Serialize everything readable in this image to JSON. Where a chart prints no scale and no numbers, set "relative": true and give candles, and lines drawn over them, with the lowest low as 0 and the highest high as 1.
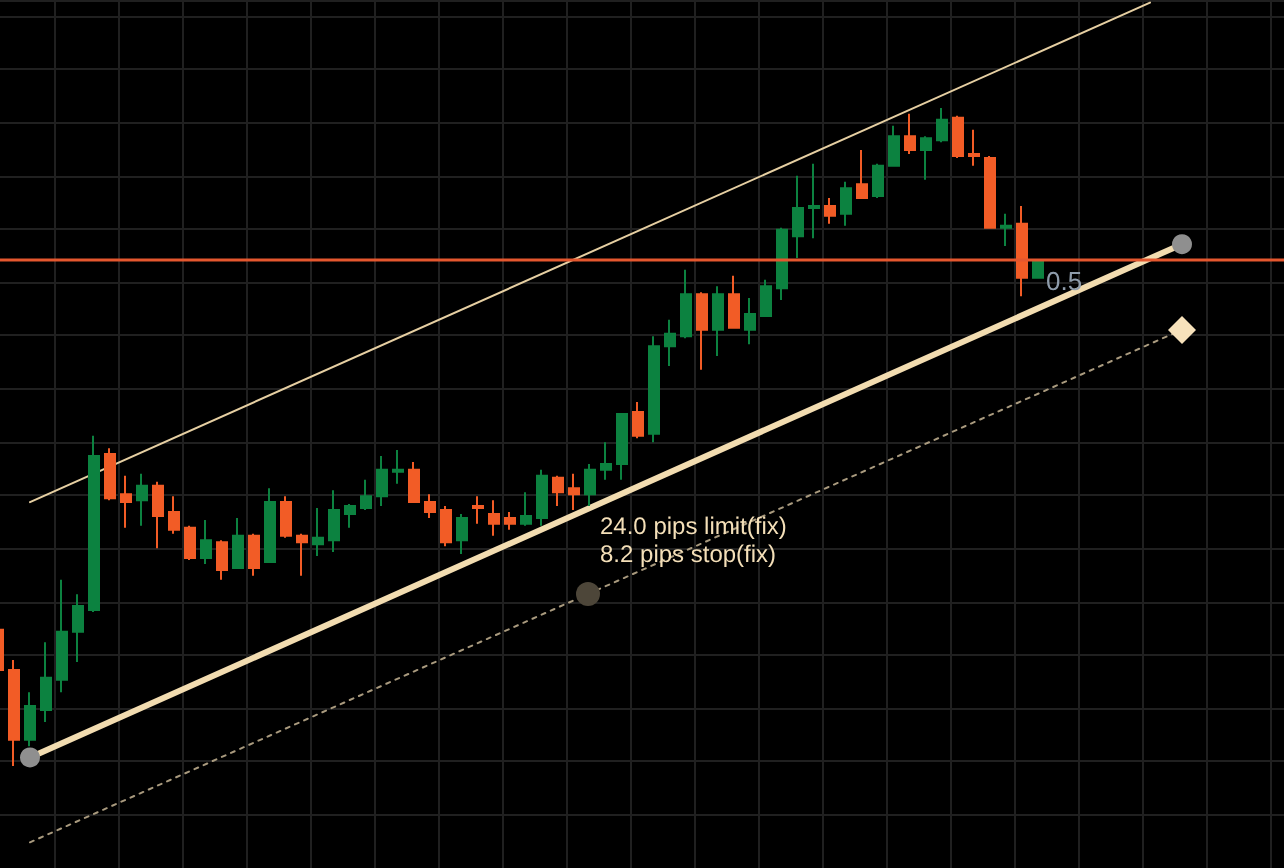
{
  "chart_data": {
    "type": "candlestick",
    "relative": true,
    "grid": true,
    "categories": [
      null,
      null,
      null,
      null,
      null,
      null,
      null,
      null,
      null,
      null,
      null,
      null,
      null,
      null,
      null,
      null,
      null,
      null,
      null,
      null,
      null,
      null,
      null,
      null,
      null,
      null,
      null,
      null,
      null,
      null,
      null,
      null,
      null,
      null,
      null,
      null,
      null,
      null,
      null,
      null,
      null,
      null,
      null,
      null,
      null,
      null,
      null,
      null,
      null,
      null,
      null,
      null,
      null,
      null,
      null,
      null,
      null,
      null,
      null,
      null,
      null,
      null,
      null,
      null,
      null,
      null,
      null,
      null,
      null,
      null,
      null,
      null,
      null,
      null,
      null,
      null,
      null,
      null,
      null,
      null,
      null
    ],
    "ohlc": [
      [
        0.207,
        0.207,
        0.146,
        0.146
      ],
      [
        0.146,
        0.161,
        0,
        0.04
      ],
      [
        0.04,
        0.112,
        0.03,
        0.091
      ],
      [
        0.085,
        0.188,
        0.067,
        0.134
      ],
      [
        0.131,
        0.283,
        0.112,
        0.204
      ],
      [
        0.204,
        0.261,
        0.158,
        0.243
      ],
      [
        0.237,
        0.502,
        0.234,
        0.471
      ],
      [
        0.474,
        0.483,
        0.404,
        0.407
      ],
      [
        0.413,
        0.441,
        0.362,
        0.401
      ],
      [
        0.404,
        0.444,
        0.365,
        0.426
      ],
      [
        0.426,
        0.432,
        0.331,
        0.38
      ],
      [
        0.386,
        0.41,
        0.353,
        0.359
      ],
      [
        0.362,
        0.365,
        0.313,
        0.316
      ],
      [
        0.316,
        0.374,
        0.307,
        0.343
      ],
      [
        0.34,
        0.343,
        0.283,
        0.298
      ],
      [
        0.301,
        0.377,
        0.301,
        0.35
      ],
      [
        0.35,
        0.353,
        0.289,
        0.301
      ],
      [
        0.31,
        0.422,
        0.31,
        0.401
      ],
      [
        0.401,
        0.41,
        0.347,
        0.35
      ],
      [
        0.35,
        0.353,
        0.289,
        0.34
      ],
      [
        0.337,
        0.392,
        0.319,
        0.347
      ],
      [
        0.343,
        0.419,
        0.325,
        0.389
      ],
      [
        0.383,
        0.398,
        0.362,
        0.395
      ],
      [
        0.392,
        0.435,
        0.389,
        0.41
      ],
      [
        0.41,
        0.471,
        0.395,
        0.45
      ],
      [
        0.447,
        0.48,
        0.429,
        0.45
      ],
      [
        0.45,
        0.462,
        0.401,
        0.401
      ],
      [
        0.401,
        0.413,
        0.377,
        0.386
      ],
      [
        0.389,
        0.395,
        0.334,
        0.34
      ],
      [
        0.343,
        0.383,
        0.322,
        0.377
      ],
      [
        0.395,
        0.41,
        0.368,
        0.392
      ],
      [
        0.383,
        0.404,
        0.35,
        0.368
      ],
      [
        0.377,
        0.386,
        0.359,
        0.368
      ],
      [
        0.368,
        0.416,
        0.365,
        0.38
      ],
      [
        0.377,
        0.45,
        0.365,
        0.441
      ],
      [
        0.438,
        0.441,
        0.395,
        0.416
      ],
      [
        0.422,
        0.444,
        0.389,
        0.413
      ],
      [
        0.413,
        0.459,
        0.395,
        0.45
      ],
      [
        0.45,
        0.492,
        0.435,
        0.459
      ],
      [
        0.459,
        0.535,
        0.435,
        0.535
      ],
      [
        0.538,
        0.553,
        0.498,
        0.502
      ],
      [
        0.505,
        0.653,
        0.492,
        0.638
      ],
      [
        0.638,
        0.678,
        0.608,
        0.657
      ],
      [
        0.653,
        0.754,
        0.65,
        0.717
      ],
      [
        0.717,
        0.72,
        0.602,
        0.663
      ],
      [
        0.663,
        0.729,
        0.623,
        0.717
      ],
      [
        0.717,
        0.745,
        0.666,
        0.666
      ],
      [
        0.663,
        0.711,
        0.641,
        0.687
      ],
      [
        0.684,
        0.739,
        0.684,
        0.729
      ],
      [
        0.726,
        0.818,
        0.708,
        0.815
      ],
      [
        0.805,
        0.897,
        0.772,
        0.848
      ],
      [
        0.848,
        0.915,
        0.802,
        0.851
      ],
      [
        0.851,
        0.863,
        0.824,
        0.836
      ],
      [
        0.839,
        0.888,
        0.821,
        0.878
      ],
      [
        0.884,
        0.936,
        0.863,
        0.863
      ],
      [
        0.866,
        0.915,
        0.863,
        0.912
      ],
      [
        0.912,
        0.973,
        0.912,
        0.957
      ],
      [
        0.957,
        0.991,
        0.93,
        0.936
      ],
      [
        0.936,
        0.957,
        0.891,
        0.954
      ],
      [
        0.951,
        1,
        0.948,
        0.982
      ],
      [
        0.985,
        0.988,
        0.924,
        0.927
      ],
      [
        0.93,
        0.967,
        0.912,
        0.927
      ],
      [
        0.924,
        0.927,
        0.818,
        0.818
      ],
      [
        0.818,
        0.839,
        0.79,
        0.821
      ],
      [
        0.824,
        0.851,
        0.714,
        0.742
      ],
      [
        0.742,
        0.766,
        0.742,
        0.766
      ],
      null,
      null,
      null,
      null,
      null,
      null,
      null,
      null,
      null,
      null,
      null,
      null,
      null,
      null,
      null
    ],
    "colors": [
      "#f25c26",
      "#f25c26",
      "#0c8240",
      "#0c8240",
      "#0c8240",
      "#0c8240",
      "#0c8240",
      "#f25c26",
      "#f25c26",
      "#0c8240",
      "#f25c26",
      "#f25c26",
      "#f25c26",
      "#0c8240",
      "#f25c26",
      "#0c8240",
      "#f25c26",
      "#0c8240",
      "#f25c26",
      "#f25c26",
      "#0c8240",
      "#0c8240",
      "#0c8240",
      "#0c8240",
      "#0c8240",
      "#0c8240",
      "#f25c26",
      "#f25c26",
      "#f25c26",
      "#0c8240",
      "#f25c26",
      "#f25c26",
      "#f25c26",
      "#0c8240",
      "#0c8240",
      "#f25c26",
      "#f25c26",
      "#0c8240",
      "#0c8240",
      "#0c8240",
      "#f25c26",
      "#0c8240",
      "#0c8240",
      "#0c8240",
      "#f25c26",
      "#0c8240",
      "#f25c26",
      "#0c8240",
      "#0c8240",
      "#0c8240",
      "#0c8240",
      "#0c8240",
      "#f25c26",
      "#0c8240",
      "#f25c26",
      "#0c8240",
      "#0c8240",
      "#f25c26",
      "#0c8240",
      "#0c8240",
      "#f25c26",
      "#f25c26",
      "#f25c26",
      "#0c8240",
      "#f25c26",
      "#0c8240",
      null,
      null,
      null,
      null,
      null,
      null,
      null,
      null,
      null,
      null,
      null,
      null,
      null,
      null,
      null
    ],
    "series": [
      {
        "type": "line",
        "color": "#f2dcb0",
        "marker": "circle",
        "values": [
          null,
          null,
          0.013,
          null,
          null,
          null,
          null,
          null,
          null,
          null,
          null,
          null,
          null,
          null,
          null,
          null,
          null,
          null,
          null,
          null,
          null,
          null,
          null,
          null,
          null,
          null,
          null,
          null,
          null,
          null,
          null,
          null,
          null,
          null,
          null,
          null,
          null,
          null,
          null,
          null,
          null,
          null,
          null,
          null,
          null,
          null,
          null,
          null,
          null,
          null,
          null,
          null,
          null,
          null,
          null,
          null,
          null,
          null,
          null,
          null,
          null,
          null,
          null,
          null,
          null,
          null,
          null,
          null,
          null,
          null,
          null,
          null,
          null,
          null,
          0.793,
          null,
          null,
          null,
          null,
          null,
          null
        ]
      },
      {
        "type": "line",
        "color": "#e6cfa2",
        "values": [
          null,
          null,
          0.401,
          null,
          null,
          null,
          null,
          null,
          null,
          null,
          null,
          null,
          null,
          null,
          null,
          null,
          null,
          null,
          null,
          null,
          null,
          null,
          null,
          null,
          null,
          null,
          null,
          null,
          null,
          null,
          null,
          null,
          null,
          null,
          null,
          null,
          null,
          null,
          null,
          null,
          null,
          null,
          null,
          null,
          null,
          null,
          null,
          null,
          null,
          null,
          null,
          null,
          null,
          null,
          null,
          null,
          null,
          null,
          null,
          null,
          null,
          null,
          null,
          null,
          null,
          null,
          null,
          null,
          null,
          null,
          null,
          null,
          1.16,
          null,
          null,
          null,
          null,
          null,
          null,
          null,
          null
        ]
      },
      {
        "type": "line",
        "color": "#a99a7e",
        "line_style": "dotted",
        "values": [
          null,
          null,
          -0.116,
          null,
          null,
          null,
          null,
          null,
          null,
          null,
          null,
          null,
          null,
          null,
          null,
          null,
          null,
          null,
          null,
          null,
          null,
          null,
          null,
          null,
          null,
          null,
          null,
          null,
          null,
          null,
          null,
          null,
          null,
          null,
          null,
          null,
          null,
          null,
          null,
          null,
          null,
          null,
          null,
          null,
          null,
          null,
          null,
          null,
          null,
          null,
          null,
          null,
          null,
          null,
          null,
          null,
          null,
          null,
          null,
          null,
          null,
          null,
          null,
          null,
          null,
          null,
          null,
          null,
          null,
          null,
          null,
          null,
          null,
          null,
          0.663,
          null,
          null,
          null,
          null,
          null,
          null
        ]
      }
    ],
    "ref_lines": [
      {
        "axis": "y",
        "value": 0.769,
        "color": "#e4572e"
      }
    ],
    "annotations": [
      "24.0 pips limit(fix)",
      "8.2 pips stop(fix)",
      "0.5"
    ]
  }
}
